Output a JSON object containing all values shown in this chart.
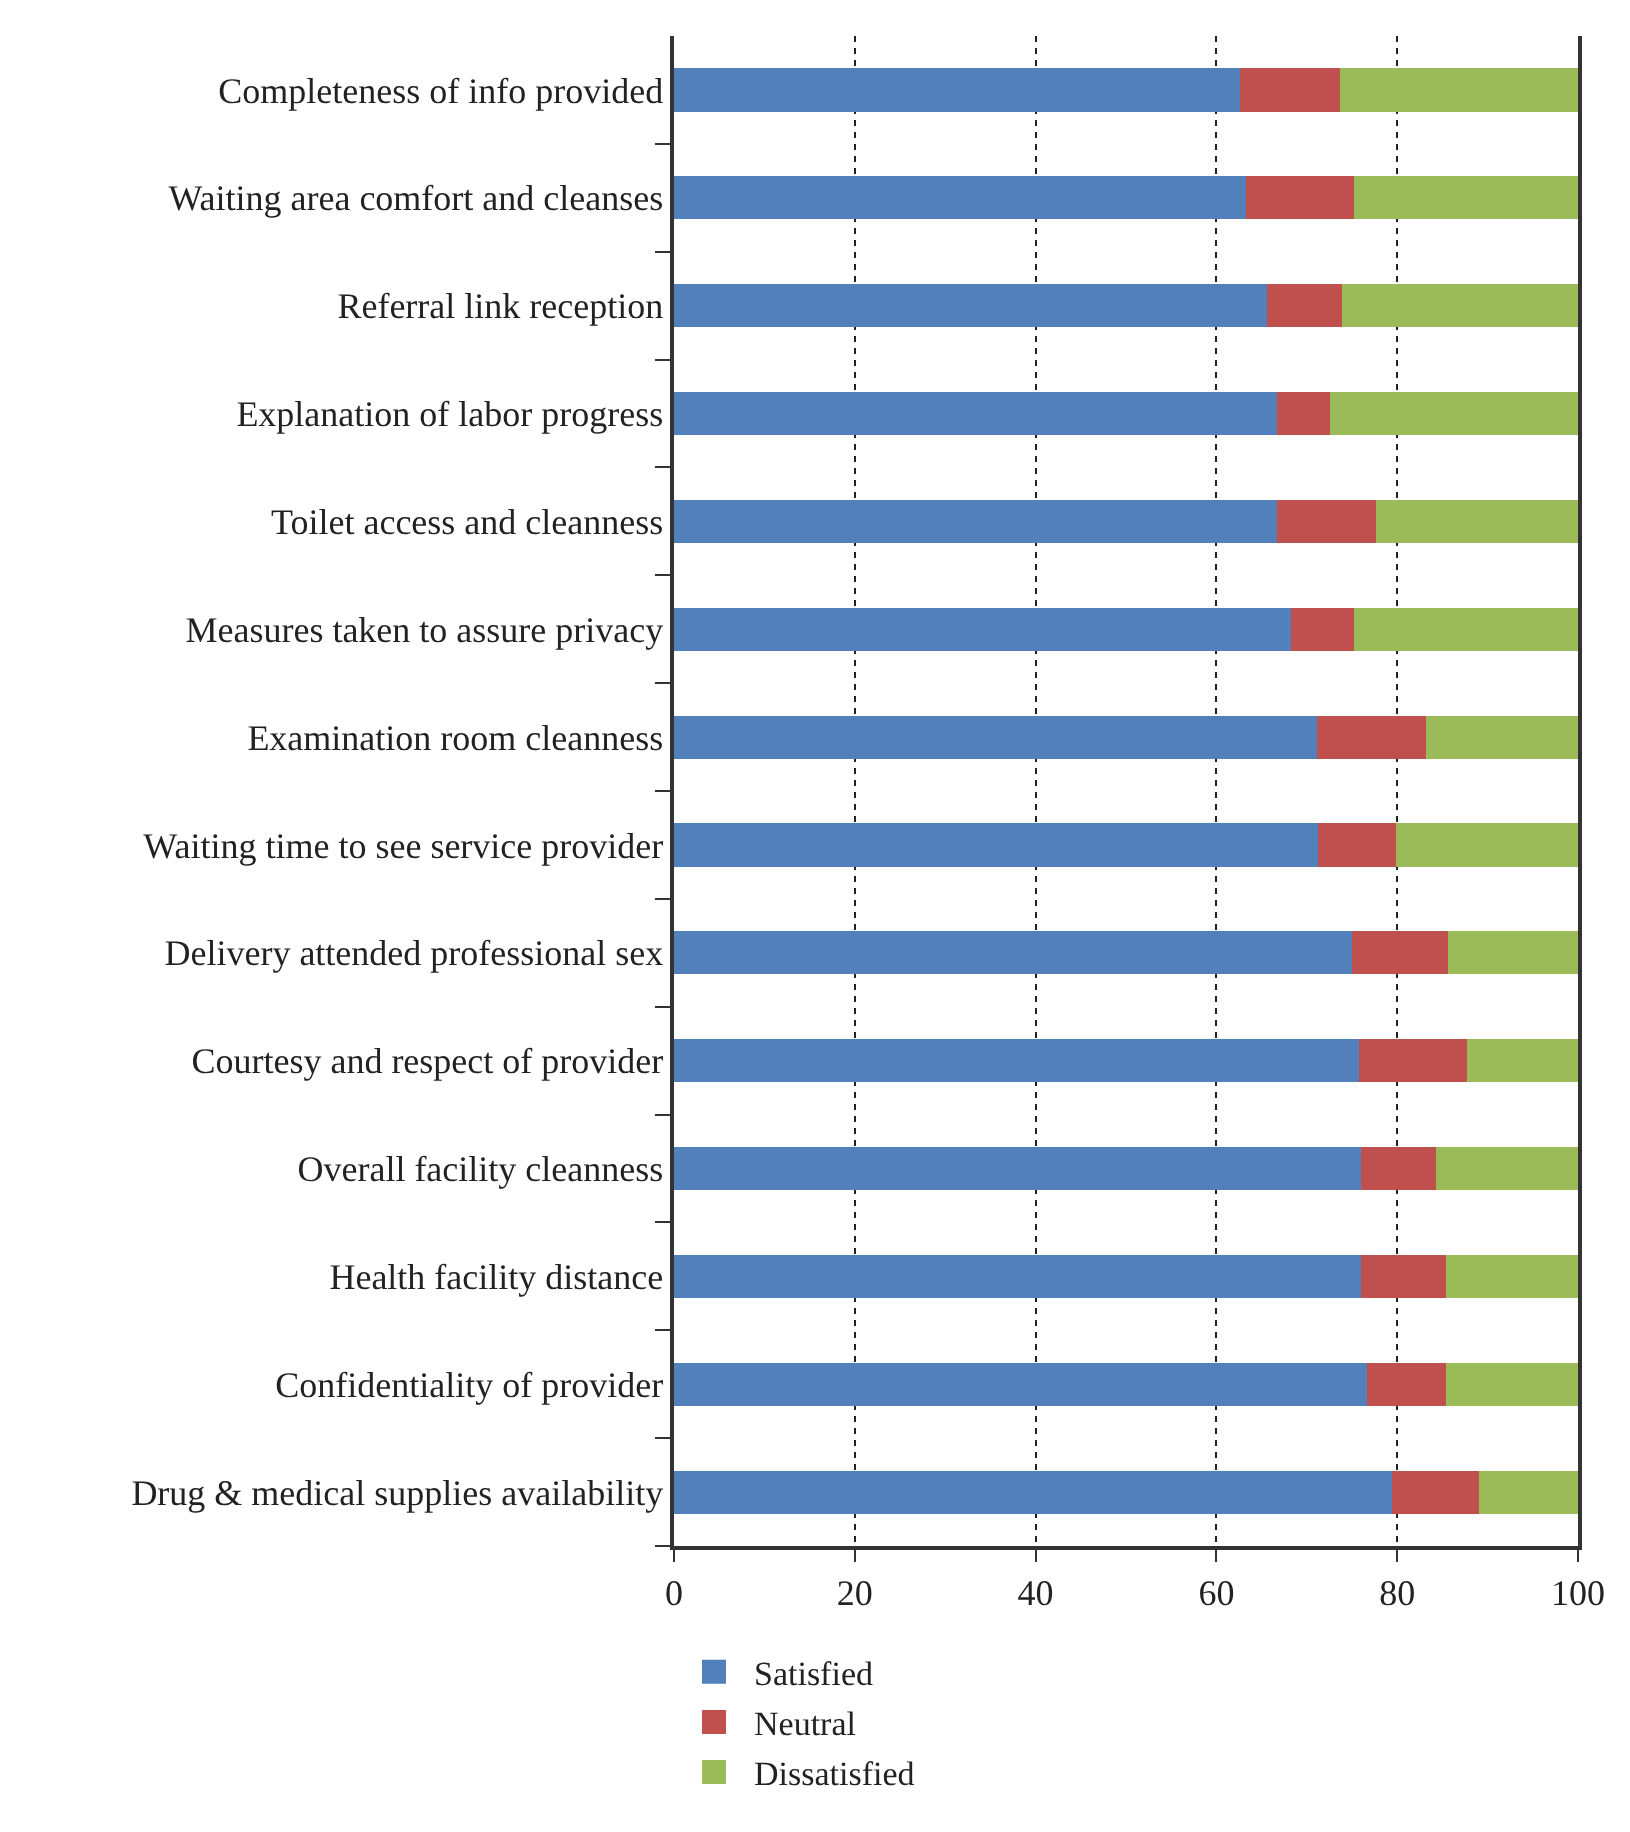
{
  "chart_data": {
    "type": "bar",
    "orientation": "horizontal",
    "stacked": true,
    "categories": [
      "Completeness of info provided",
      "Waiting area comfort and cleanses",
      "Referral link reception",
      "Explanation of labor progress",
      "Toilet access and cleanness",
      "Measures taken to assure privacy",
      "Examination room cleanness",
      "Waiting time to see service provider",
      "Delivery attended professional sex",
      "Courtesy and respect of provider",
      "Overall facility cleanness",
      "Health facility distance",
      "Confidentiality of provider",
      "Drug & medical supplies availability"
    ],
    "series": [
      {
        "name": "Satisfied",
        "color": "#5180bb",
        "values": [
          62.6,
          63.3,
          65.6,
          66.7,
          66.7,
          68.2,
          71.1,
          71.2,
          75.0,
          75.8,
          76.0,
          76.0,
          76.7,
          79.4
        ]
      },
      {
        "name": "Neutral",
        "color": "#c0504e",
        "values": [
          11.1,
          11.9,
          8.3,
          5.9,
          10.9,
          7.0,
          12.1,
          8.7,
          10.6,
          11.9,
          8.3,
          9.4,
          8.7,
          9.6
        ]
      },
      {
        "name": "Dissatisfied",
        "color": "#9bbb59",
        "values": [
          26.3,
          24.8,
          26.1,
          27.4,
          22.4,
          24.8,
          16.8,
          20.1,
          14.4,
          12.3,
          15.7,
          14.6,
          14.6,
          11.0
        ]
      }
    ],
    "xlim": [
      0,
      100
    ],
    "xticks": [
      0,
      20,
      40,
      60,
      80,
      100
    ],
    "grid": "x",
    "legend": "bottom left"
  }
}
